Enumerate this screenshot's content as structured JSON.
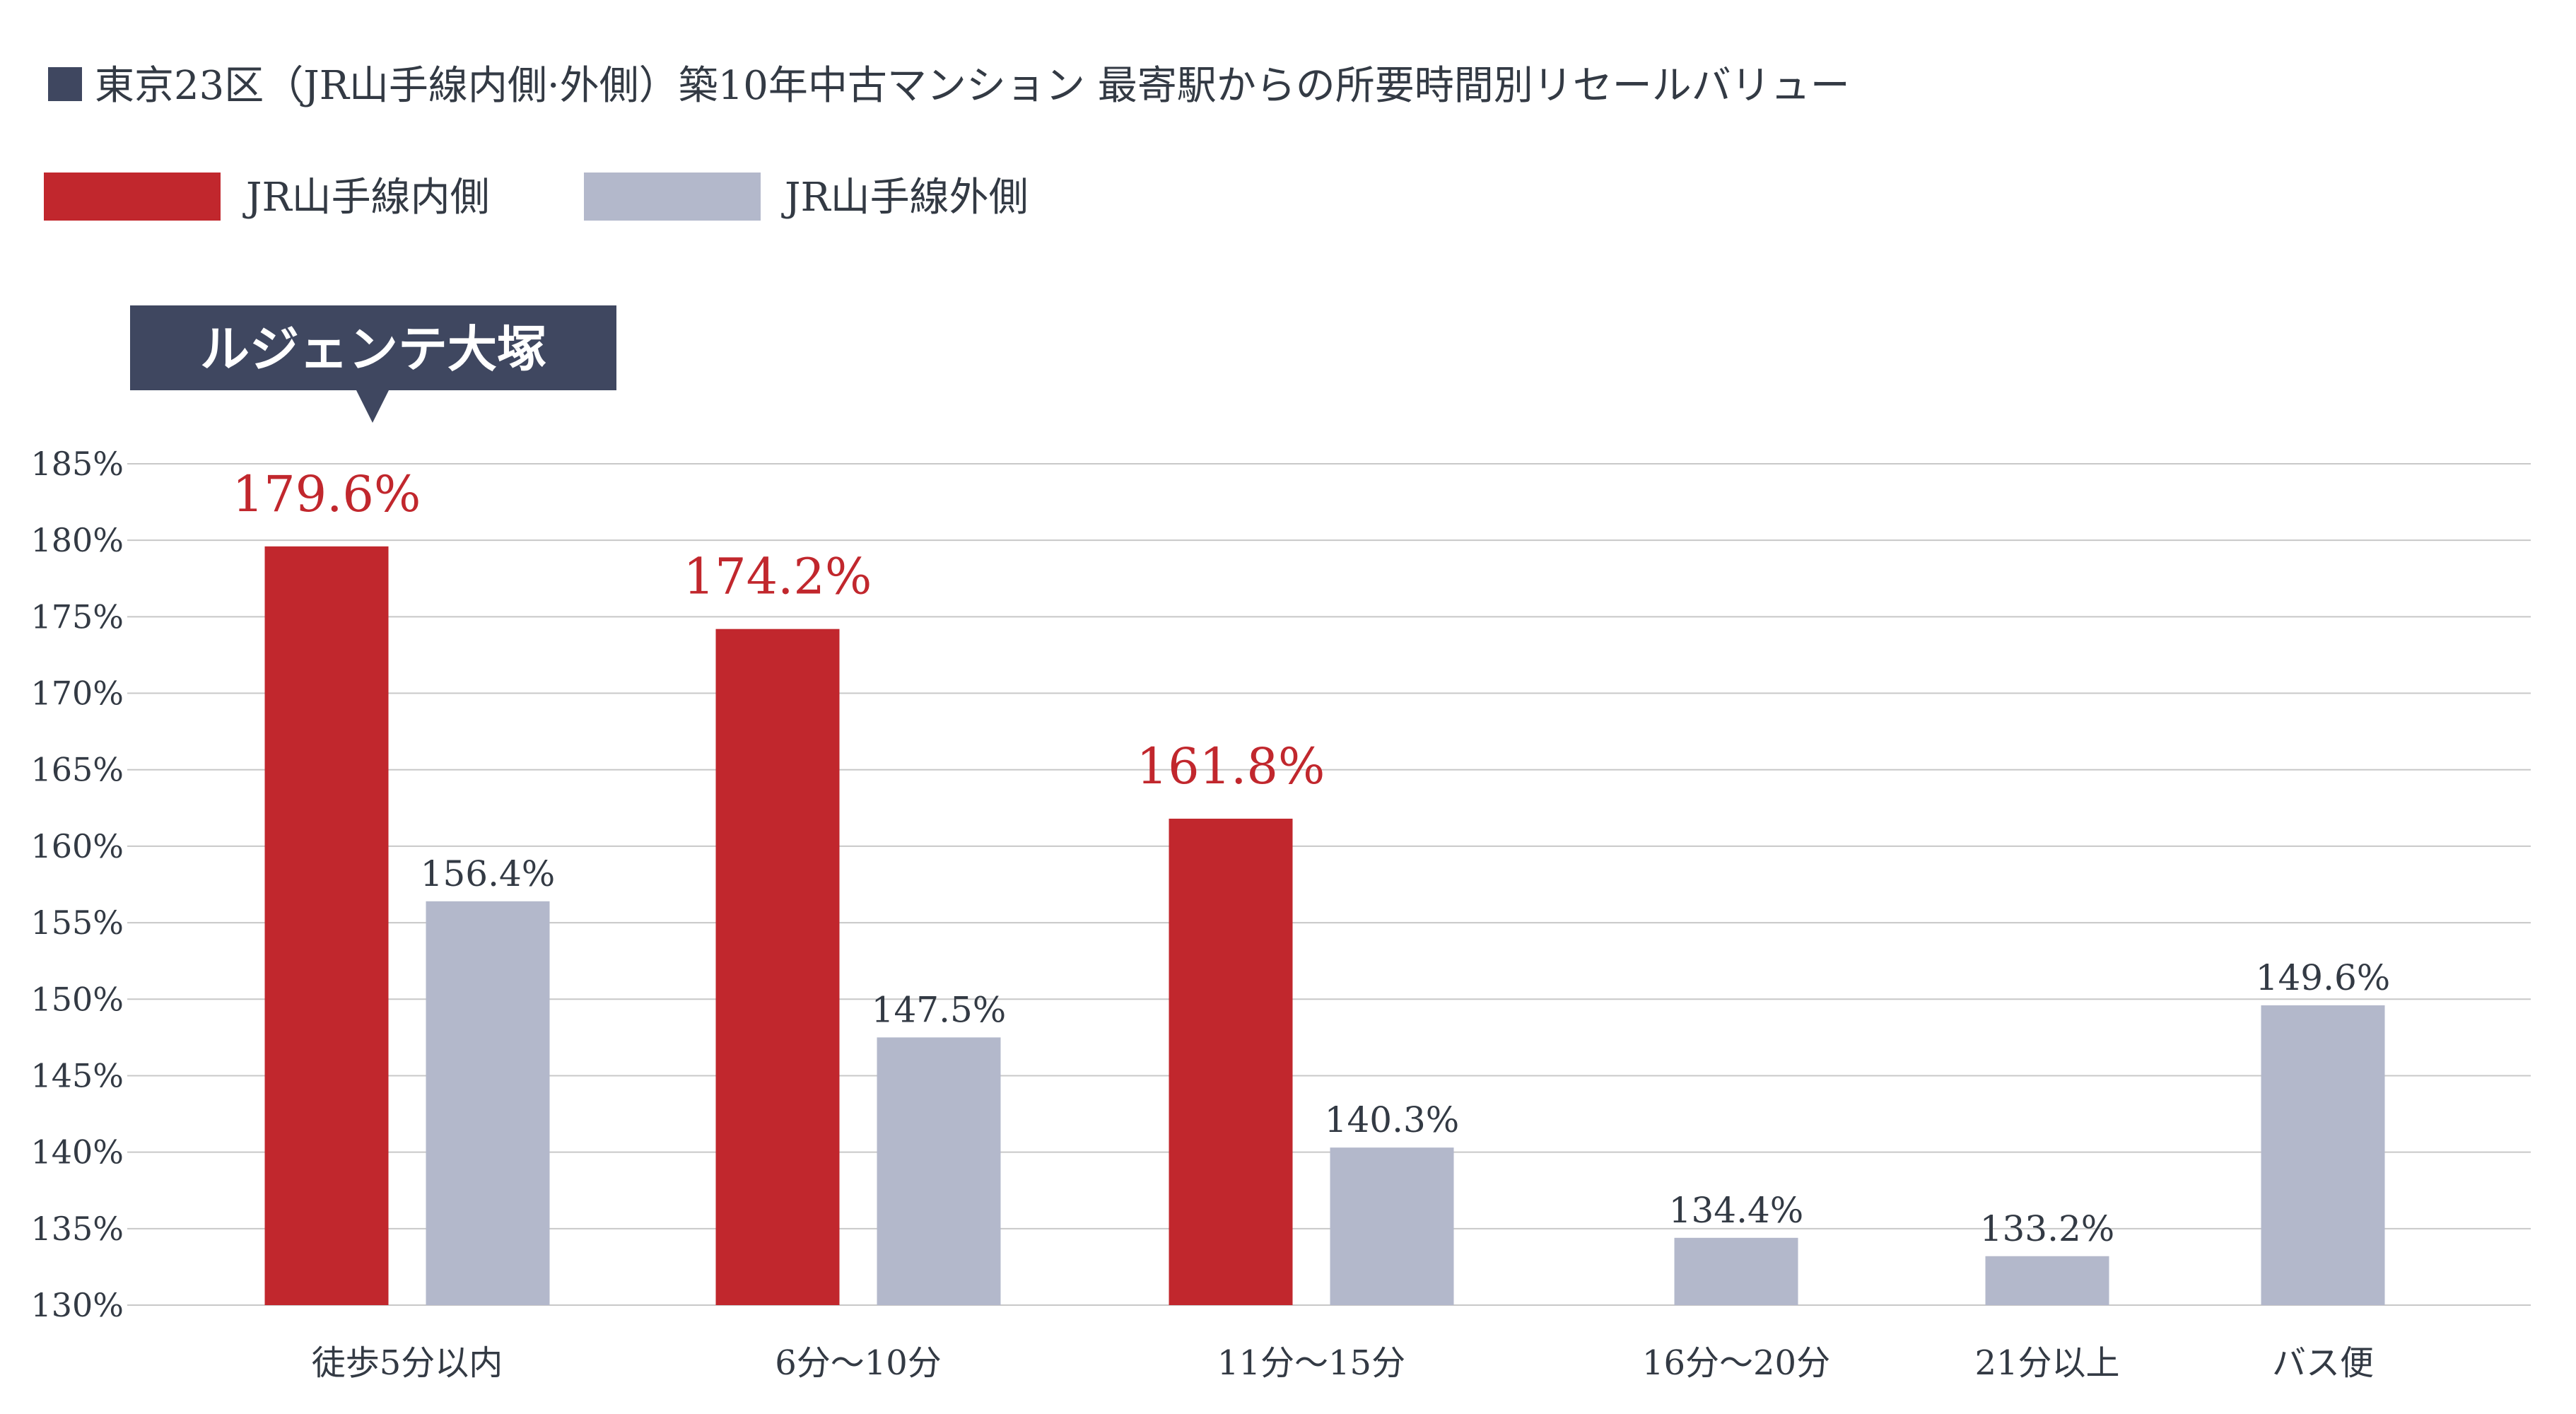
{
  "title": "東京23区（JR山手線内側·外側）築10年中古マンション 最寄駅からの所要時間別リセールバリュー",
  "legend": [
    {
      "label": "JR山手線内側",
      "color": "#c1272d"
    },
    {
      "label": "JR山手線外側",
      "color": "#b3b8cb"
    }
  ],
  "callout": {
    "label": "ルジェンテ大塚",
    "color": "#3f4760"
  },
  "colors": {
    "inner": "#c1272d",
    "outer": "#b3b8cb",
    "grid": "#c8c8c8",
    "title_marker": "#3f4760"
  },
  "chart_data": {
    "type": "bar",
    "categories": [
      "徒歩5分以内",
      "6分〜10分",
      "11分〜15分",
      "16分〜20分",
      "21分以上",
      "バス便"
    ],
    "series": [
      {
        "name": "JR山手線内側",
        "values": [
          179.6,
          174.2,
          161.8,
          null,
          null,
          null
        ],
        "labels": [
          "179.6%",
          "174.2%",
          "161.8%",
          "",
          "",
          ""
        ]
      },
      {
        "name": "JR山手線外側",
        "values": [
          156.4,
          147.5,
          140.3,
          134.4,
          133.2,
          149.6
        ],
        "labels": [
          "156.4%",
          "147.5%",
          "140.3%",
          "134.4%",
          "133.2%",
          "149.6%"
        ]
      }
    ],
    "yticks": [
      "185%",
      "180%",
      "175%",
      "170%",
      "165%",
      "160%",
      "155%",
      "150%",
      "145%",
      "140%",
      "135%",
      "130%"
    ],
    "ylim": [
      130,
      185
    ],
    "grid": true,
    "legend_position": "top-left"
  }
}
